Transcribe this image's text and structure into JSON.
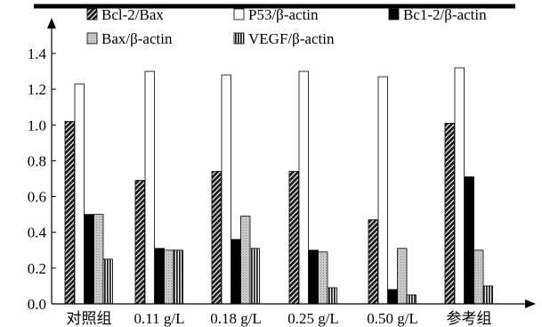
{
  "chart_data": {
    "type": "bar",
    "title": "",
    "xlabel": "",
    "ylabel": "",
    "ylim": [
      0,
      1.5
    ],
    "yticks": [
      "0.0",
      "0.2",
      "0.4",
      "0.6",
      "0.8",
      "1.0",
      "1.2",
      "1.4"
    ],
    "categories": [
      "对照组",
      "0.11 g/L",
      "0.18 g/L",
      "0.25 g/L",
      "0.50 g/L",
      "参考组"
    ],
    "legend_placement": "top",
    "series": [
      {
        "name": "Bcl-2/Bax",
        "name_html": "Bcl-2/Bax",
        "pattern": "diag-dense",
        "values": [
          1.02,
          0.69,
          0.74,
          0.74,
          0.47,
          1.01
        ]
      },
      {
        "name": "P53/β-actin",
        "pattern": "white",
        "values": [
          1.23,
          1.3,
          1.28,
          1.3,
          1.27,
          1.32
        ]
      },
      {
        "name": "Bc1-2/β-actin",
        "pattern": "black",
        "values": [
          0.5,
          0.31,
          0.36,
          0.3,
          0.08,
          0.71
        ]
      },
      {
        "name": "Bax/β-actin",
        "pattern": "gray",
        "values": [
          0.5,
          0.3,
          0.49,
          0.29,
          0.31,
          0.3
        ]
      },
      {
        "name": "VEGF/β-actin",
        "pattern": "vertical",
        "values": [
          0.25,
          0.3,
          0.31,
          0.09,
          0.05,
          0.1
        ]
      }
    ]
  }
}
